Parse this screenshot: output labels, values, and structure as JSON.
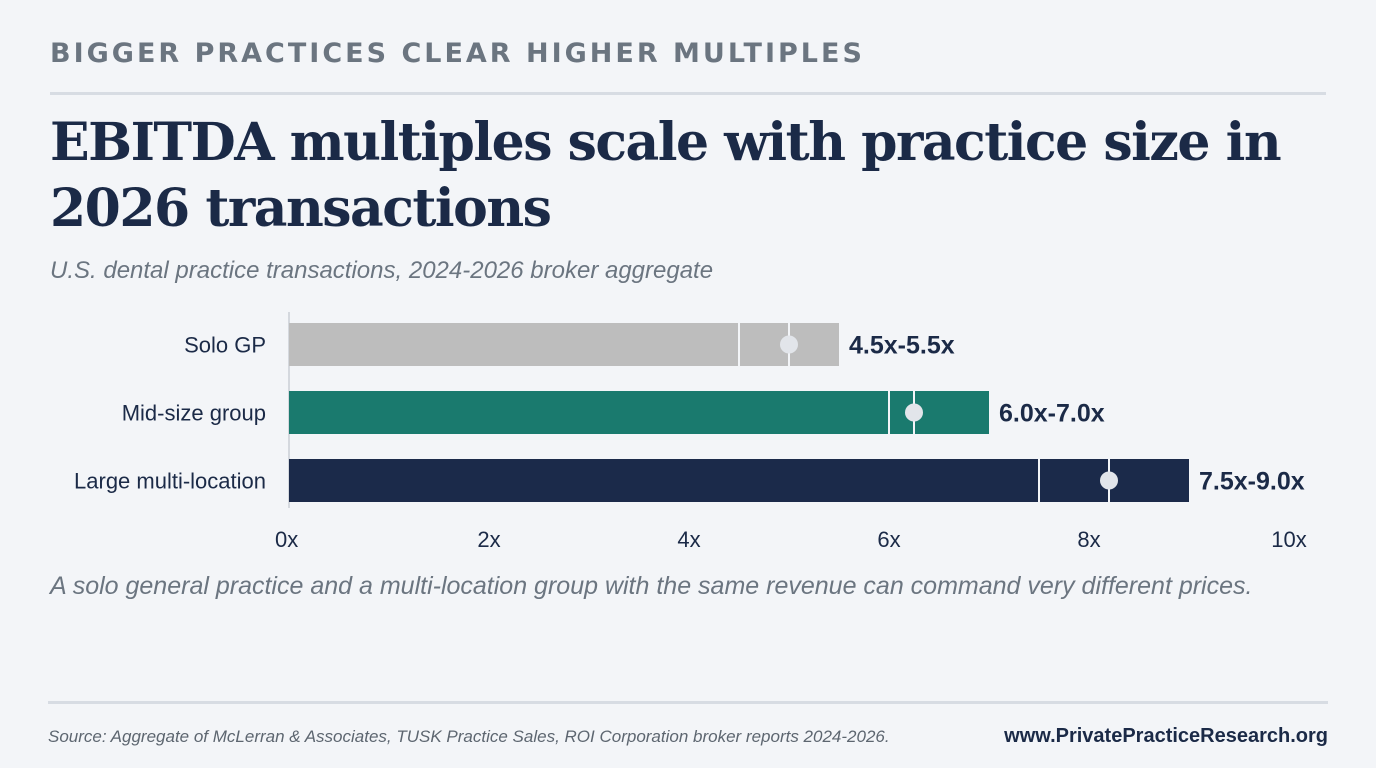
{
  "header": {
    "eyebrow": "BIGGER PRACTICES CLEAR HIGHER MULTIPLES",
    "headline": "EBITDA multiples scale with practice size in 2026 transactions",
    "subtitle": "U.S. dental practice transactions, 2024-2026 broker aggregate"
  },
  "chart_data": {
    "type": "bar",
    "orientation": "horizontal",
    "categories": [
      "Solo GP",
      "Mid-size group",
      "Large multi-location"
    ],
    "ranges": [
      {
        "low": 4.5,
        "high": 5.5,
        "midpoint": 5.0,
        "label": "4.5x-5.5x",
        "color": "#bdbdbd"
      },
      {
        "low": 6.0,
        "high": 7.0,
        "midpoint": 6.25,
        "label": "6.0x-7.0x",
        "color": "#1a7a6e"
      },
      {
        "low": 7.5,
        "high": 9.0,
        "midpoint": 8.2,
        "label": "7.5x-9.0x",
        "color": "#1b2a4a"
      }
    ],
    "xlim": [
      0,
      10
    ],
    "x_ticks": [
      0,
      2,
      4,
      6,
      8,
      10
    ],
    "x_tick_labels": [
      "0x",
      "2x",
      "4x",
      "6x",
      "8x",
      "10x"
    ],
    "grid": false,
    "legend": "none"
  },
  "footer": {
    "note": "A solo general practice and a multi-location group with the same revenue can command very different prices.",
    "source": "Source: Aggregate of McLerran & Associates, TUSK Practice Sales, ROI Corporation broker reports 2024-2026.",
    "website": "www.PrivatePracticeResearch.org"
  }
}
